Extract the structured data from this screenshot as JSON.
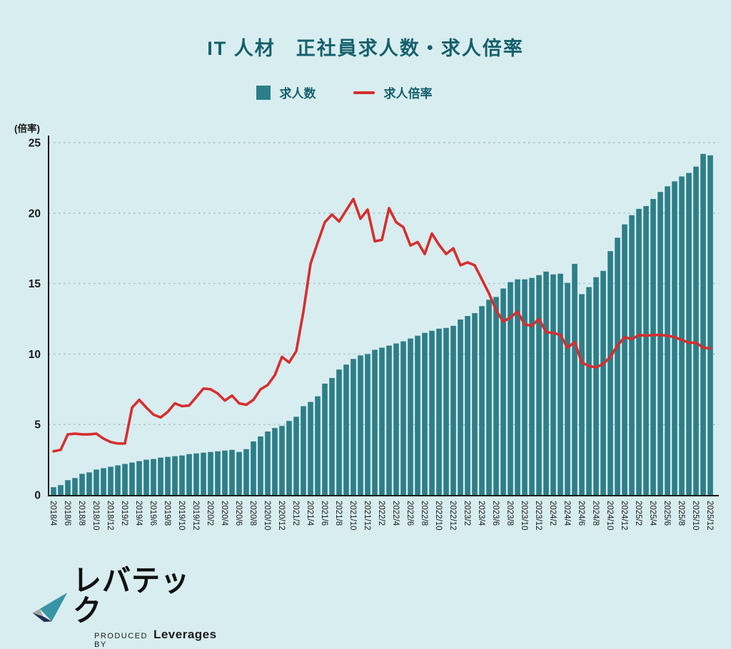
{
  "title": "IT 人材　正社員求人数・求人倍率",
  "legend": {
    "bars_label": "求人数",
    "line_label": "求人倍率"
  },
  "y_axis": {
    "unit_label": "(倍率)",
    "ticks": [
      0,
      5,
      10,
      15,
      20,
      25
    ],
    "grid_values": [
      5,
      10,
      15,
      20,
      25
    ]
  },
  "colors": {
    "background": "#d8edf0",
    "bar": "#2d7e88",
    "line": "#d62e2e",
    "title": "#15606c",
    "legend_text": "#15606c",
    "grid": "#9fc3c9",
    "axis": "#1a1a1a",
    "tick_text": "#1a1a1a",
    "logo_teal": "#3795a5",
    "logo_gray": "#a7a5a3",
    "logo_navy": "#232d52"
  },
  "logo": {
    "name": "レバテック",
    "produced_by": "PRODUCED BY",
    "company": "Leverages"
  },
  "chart_data": {
    "type": "bar",
    "secondary_type": "line",
    "title": "IT 人材　正社員求人数・求人倍率",
    "ylabel": "(倍率)",
    "ylim": [
      0,
      25
    ],
    "grid": "horizontal-dashed",
    "legend_position": "top-center",
    "x_tick_labels": [
      "2018/4",
      "2018/6",
      "2018/8",
      "2018/10",
      "2018/12",
      "2019/2",
      "2019/4",
      "2019/6",
      "2019/8",
      "2019/10",
      "2019/12",
      "2020/2",
      "2020/4",
      "2020/6",
      "2020/8",
      "2020/10",
      "2020/12",
      "2021/2",
      "2021/4",
      "2021/6",
      "2021/8",
      "2021/10",
      "2021/12",
      "2022/2",
      "2022/4",
      "2022/6",
      "2022/8",
      "2022/10",
      "2022/12",
      "2023/2",
      "2023/4",
      "2023/6",
      "2023/8",
      "2023/10",
      "2023/12",
      "2024/2",
      "2024/4",
      "2024/6",
      "2024/8",
      "2024/10",
      "2024/12",
      "2025/2",
      "2025/4",
      "2025/6",
      "2025/8",
      "2025/10",
      "2025/12"
    ],
    "categories": [
      "2018/4",
      "2018/5",
      "2018/6",
      "2018/7",
      "2018/8",
      "2018/9",
      "2018/10",
      "2018/11",
      "2018/12",
      "2019/1",
      "2019/2",
      "2019/3",
      "2019/4",
      "2019/5",
      "2019/6",
      "2019/7",
      "2019/8",
      "2019/9",
      "2019/10",
      "2019/11",
      "2019/12",
      "2020/1",
      "2020/2",
      "2020/3",
      "2020/4",
      "2020/5",
      "2020/6",
      "2020/7",
      "2020/8",
      "2020/9",
      "2020/10",
      "2020/11",
      "2020/12",
      "2021/1",
      "2021/2",
      "2021/3",
      "2021/4",
      "2021/5",
      "2021/6",
      "2021/7",
      "2021/8",
      "2021/9",
      "2021/10",
      "2021/11",
      "2021/12",
      "2022/1",
      "2022/2",
      "2022/3",
      "2022/4",
      "2022/5",
      "2022/6",
      "2022/7",
      "2022/8",
      "2022/9",
      "2022/10",
      "2022/11",
      "2022/12",
      "2023/1",
      "2023/2",
      "2023/3",
      "2023/4",
      "2023/5",
      "2023/6",
      "2023/7",
      "2023/8",
      "2023/9",
      "2023/10",
      "2023/11",
      "2023/12",
      "2024/1",
      "2024/2",
      "2024/3",
      "2024/4",
      "2024/5",
      "2024/6",
      "2024/7",
      "2024/8",
      "2024/9",
      "2024/10",
      "2024/11",
      "2024/12",
      "2025/1",
      "2025/2",
      "2025/3",
      "2025/4",
      "2025/5",
      "2025/6",
      "2025/7",
      "2025/8",
      "2025/9",
      "2025/10",
      "2025/11",
      "2025/12"
    ],
    "series": [
      {
        "name": "求人数",
        "type": "bar",
        "values": [
          0.55,
          0.7,
          1.05,
          1.2,
          1.5,
          1.6,
          1.8,
          1.9,
          2.0,
          2.1,
          2.2,
          2.3,
          2.4,
          2.5,
          2.55,
          2.65,
          2.7,
          2.75,
          2.8,
          2.9,
          2.95,
          3.0,
          3.05,
          3.1,
          3.15,
          3.2,
          3.05,
          3.25,
          3.8,
          4.15,
          4.5,
          4.75,
          4.9,
          5.25,
          5.55,
          6.3,
          6.6,
          7.0,
          7.9,
          8.3,
          8.9,
          9.25,
          9.65,
          9.9,
          10.0,
          10.3,
          10.45,
          10.6,
          10.75,
          10.9,
          11.1,
          11.3,
          11.5,
          11.65,
          11.8,
          11.85,
          12.0,
          12.45,
          12.7,
          12.9,
          13.4,
          13.85,
          14.05,
          14.65,
          15.1,
          15.3,
          15.3,
          15.4,
          15.6,
          15.85,
          15.65,
          15.7,
          15.05,
          16.4,
          14.25,
          14.75,
          15.45,
          15.9,
          17.3,
          18.25,
          19.2,
          19.85,
          20.3,
          20.5,
          21.0,
          21.5,
          21.9,
          22.25,
          22.6,
          22.85,
          23.3,
          24.2,
          24.1
        ]
      },
      {
        "name": "求人倍率",
        "type": "line",
        "values": [
          3.1,
          3.2,
          4.3,
          4.35,
          4.3,
          4.3,
          4.35,
          4.0,
          3.75,
          3.65,
          3.65,
          6.2,
          6.75,
          6.2,
          5.7,
          5.5,
          5.9,
          6.5,
          6.3,
          6.35,
          6.95,
          7.55,
          7.5,
          7.2,
          6.7,
          7.05,
          6.5,
          6.4,
          6.75,
          7.5,
          7.8,
          8.5,
          9.8,
          9.4,
          10.2,
          13.0,
          16.4,
          17.9,
          19.35,
          19.9,
          19.4,
          20.2,
          21.0,
          19.6,
          20.25,
          18.0,
          18.1,
          20.35,
          19.35,
          19.0,
          17.7,
          17.95,
          17.1,
          18.55,
          17.75,
          17.1,
          17.5,
          16.3,
          16.5,
          16.3,
          15.3,
          14.3,
          13.1,
          12.3,
          12.6,
          13.0,
          12.1,
          12.0,
          12.5,
          11.55,
          11.5,
          11.35,
          10.45,
          10.85,
          9.4,
          9.15,
          9.05,
          9.3,
          9.8,
          10.6,
          11.2,
          11.05,
          11.35,
          11.3,
          11.35,
          11.35,
          11.3,
          11.2,
          11.0,
          10.8,
          10.8,
          10.45,
          10.4
        ]
      }
    ]
  }
}
